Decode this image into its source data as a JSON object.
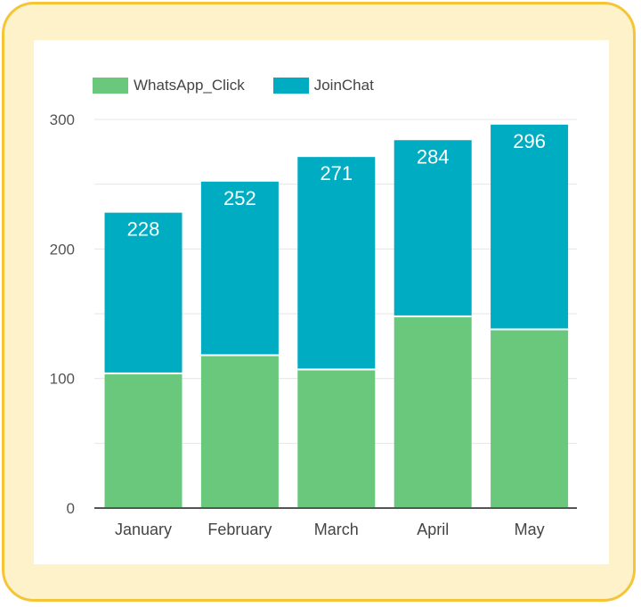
{
  "chart_data": {
    "type": "bar",
    "stacked": true,
    "categories": [
      "January",
      "February",
      "March",
      "April",
      "May"
    ],
    "series": [
      {
        "name": "WhatsApp_Click",
        "values": [
          104,
          118,
          107,
          148,
          138
        ]
      },
      {
        "name": "JoinChat",
        "values": [
          124,
          134,
          164,
          136,
          158
        ]
      }
    ],
    "totals": [
      "228",
      "252",
      "271",
      "284",
      "296"
    ],
    "yticks": [
      "0",
      "100",
      "200",
      "300"
    ],
    "ylim": [
      0,
      300
    ],
    "grid": true,
    "legend_position": "top-left",
    "colors": {
      "WhatsApp_Click": "#6ac87d",
      "JoinChat": "#00acc1",
      "frame": "#f6c537",
      "frame_fill": "#fdf2c9"
    }
  }
}
